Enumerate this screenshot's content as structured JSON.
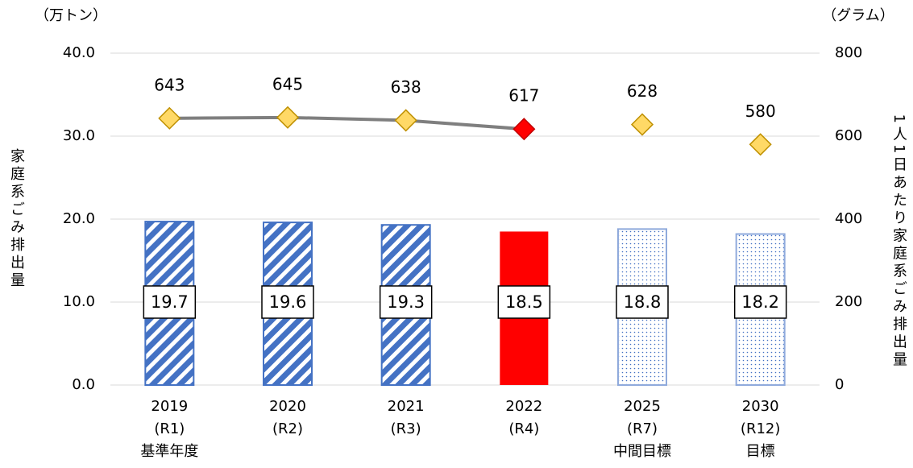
{
  "chart_data": {
    "type": "bar_line",
    "y_label": "家庭系ごみ排出量",
    "y_unit": "（万トン）",
    "y2_label": "1人1日あたり家庭系ごみ排出量",
    "y2_unit": "（グラム）",
    "categories": [
      [
        "2019",
        "(R1)",
        "基準年度"
      ],
      [
        "2020",
        "(R2)"
      ],
      [
        "2021",
        "(R3)"
      ],
      [
        "2022",
        "(R4)"
      ],
      [
        "2025",
        "(R7)",
        "中間目標"
      ],
      [
        "2030",
        "(R12)",
        "目標"
      ]
    ],
    "ylim": [
      0,
      40
    ],
    "yticks": [
      {
        "value": 0,
        "label": "0.0"
      },
      {
        "value": 10,
        "label": "10.0"
      },
      {
        "value": 20,
        "label": "20.0"
      },
      {
        "value": 30,
        "label": "30.0"
      },
      {
        "value": 40,
        "label": "40.0"
      }
    ],
    "y2lim": [
      0,
      800
    ],
    "y2ticks": [
      0,
      200,
      400,
      600,
      800
    ],
    "grid": true,
    "series": [
      {
        "type": "bar",
        "values": [
          19.7,
          19.6,
          19.3,
          18.5,
          18.8,
          18.2
        ],
        "colors": [
          "#4472c4",
          "#4472c4",
          "#4472c4",
          "#ff0000",
          "#4472c4",
          "#4472c4"
        ],
        "fills": [
          "hatch",
          "hatch",
          "hatch",
          "solid",
          "dots",
          "dots"
        ]
      },
      {
        "type": "line",
        "axis": "y2",
        "color": "#7f7f7f",
        "values": [
          643,
          645,
          638,
          617,
          null,
          null
        ],
        "marker_colors": [
          "#ffd966",
          "#ffd966",
          "#ffd966",
          "#ff0000",
          null,
          null
        ]
      },
      {
        "type": "marker",
        "axis": "y2",
        "values": [
          null,
          null,
          null,
          null,
          628,
          580
        ],
        "marker_colors": [
          null,
          null,
          null,
          null,
          "#ffd966",
          "#ffd966"
        ]
      }
    ]
  }
}
